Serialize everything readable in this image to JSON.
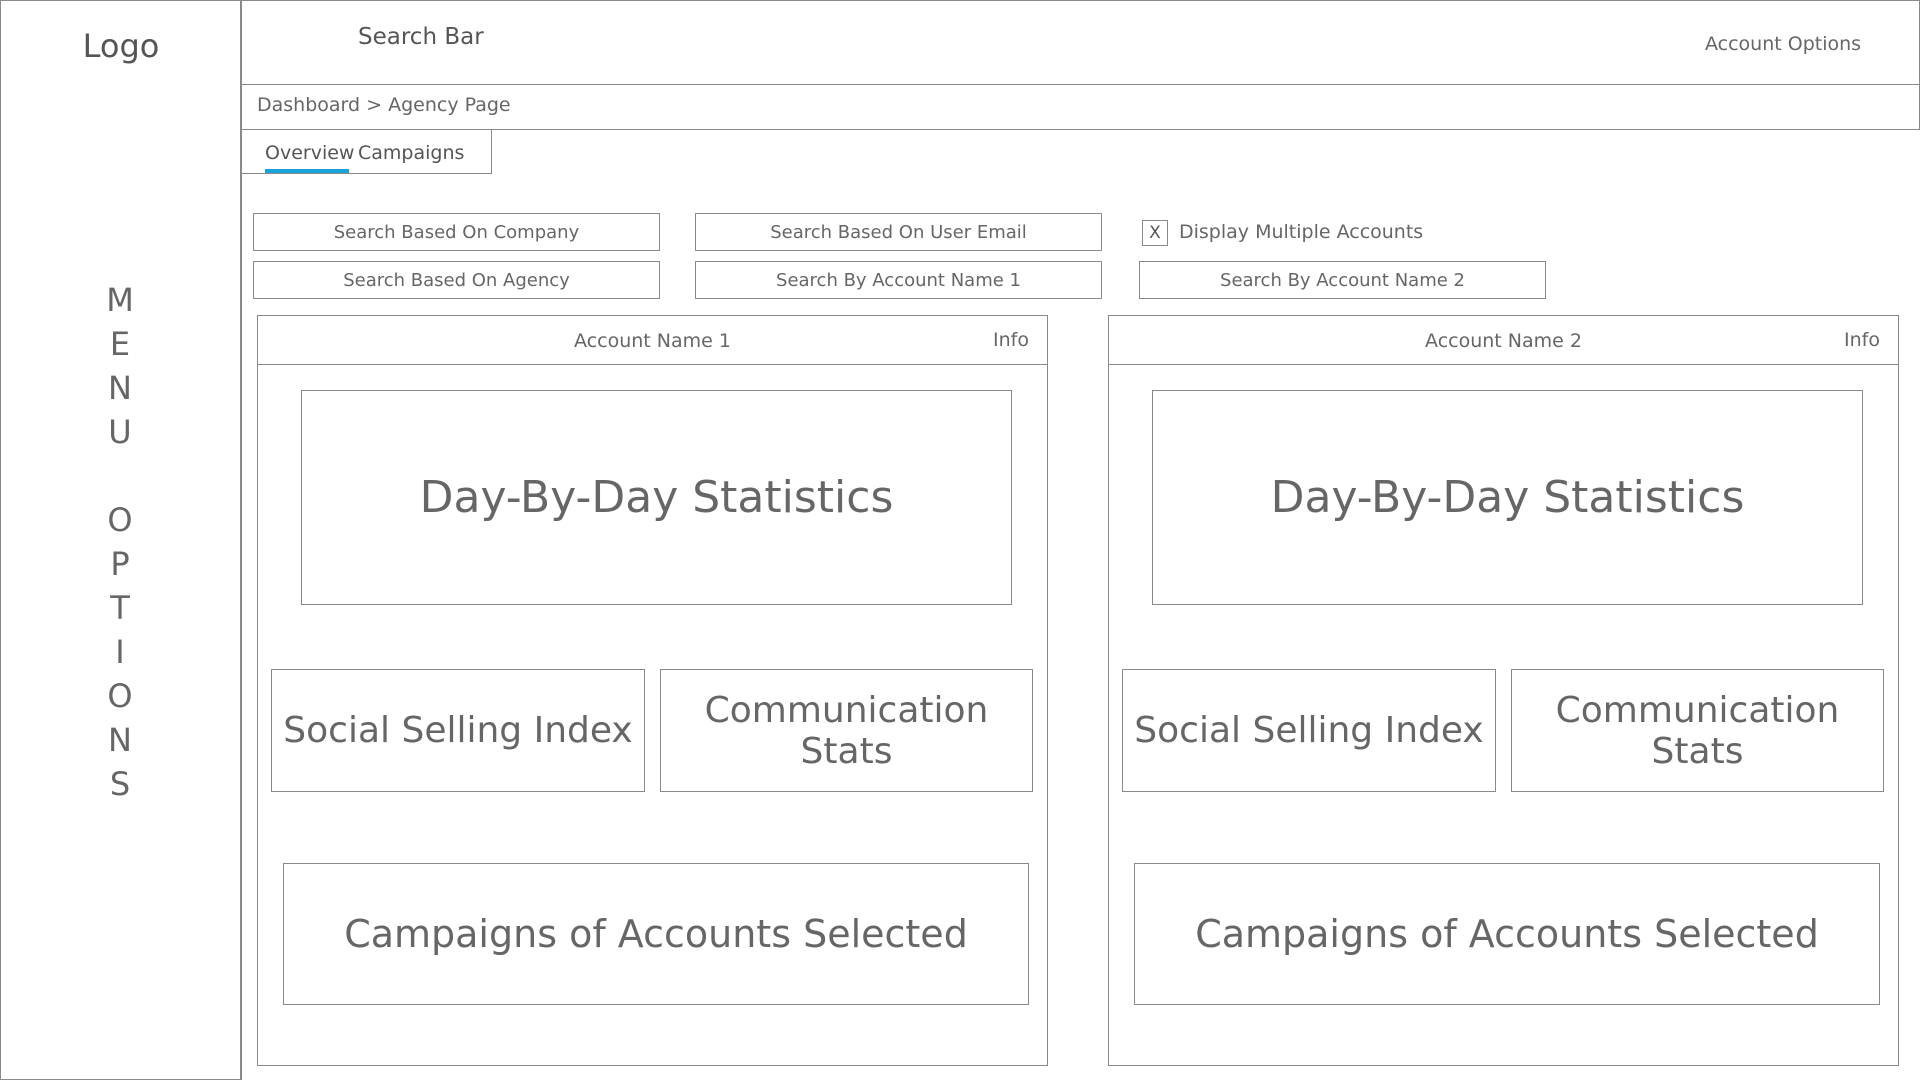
{
  "sidebar": {
    "logo": "Logo",
    "menu_letters": [
      "M",
      "E",
      "N",
      "U",
      "",
      "O",
      "P",
      "T",
      "I",
      "O",
      "N",
      "S"
    ]
  },
  "header": {
    "search_bar": "Search Bar",
    "account_options": "Account Options"
  },
  "breadcrumb": "Dashboard > Agency Page",
  "tabs": [
    {
      "label": "Overview",
      "active": true
    },
    {
      "label": "Campaigns",
      "active": false
    }
  ],
  "accent_color": "#1aa3d6",
  "filters": {
    "company": "Search Based On Company",
    "user_email": "Search Based On User Email",
    "agency": "Search Based On Agency",
    "account_name_1": "Search By Account Name 1",
    "account_name_2": "Search By Account Name 2",
    "display_multiple": {
      "checked": true,
      "mark": "X",
      "label": "Display Multiple Accounts"
    }
  },
  "panels": [
    {
      "title": "Account Name 1",
      "info": "Info",
      "day_stats": "Day-By-Day Statistics",
      "social_selling": "Social Selling Index",
      "communication": "Communication Stats",
      "campaigns": "Campaigns of Accounts Selected"
    },
    {
      "title": "Account Name 2",
      "info": "Info",
      "day_stats": "Day-By-Day Statistics",
      "social_selling": "Social Selling Index",
      "communication": "Communication Stats",
      "campaigns": "Campaigns of Accounts Selected"
    }
  ]
}
